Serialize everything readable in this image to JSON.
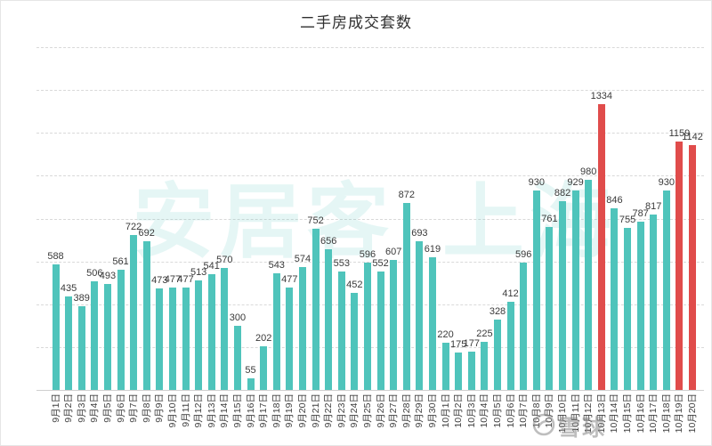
{
  "title": "二手房成交套数",
  "watermarks": {
    "center_left": "安居客",
    "center_right": "上海",
    "corner_brand": "雪球"
  },
  "colors": {
    "bar_teal": "#4FC4BB",
    "bar_red": "#E04C4B",
    "grid": "#D9D9D9",
    "axis": "#CFCFCF",
    "value_label": "#3A3A3A",
    "watermark_teal": "#4FC4BB",
    "watermark_gray": "#8A8A8A"
  },
  "chart_data": {
    "type": "bar",
    "title": "二手房成交套数",
    "categories": [
      "9月1日",
      "9月2日",
      "9月3日",
      "9月4日",
      "9月5日",
      "9月6日",
      "9月7日",
      "9月8日",
      "9月9日",
      "9月10日",
      "9月11日",
      "9月12日",
      "9月13日",
      "9月14日",
      "9月15日",
      "9月16日",
      "9月17日",
      "9月18日",
      "9月19日",
      "9月20日",
      "9月21日",
      "9月22日",
      "9月23日",
      "9月24日",
      "9月25日",
      "9月26日",
      "9月27日",
      "9月28日",
      "9月29日",
      "9月30日",
      "10月1日",
      "10月2日",
      "10月3日",
      "10月4日",
      "10月5日",
      "10月6日",
      "10月7日",
      "10月8日",
      "10月9日",
      "10月10日",
      "10月11日",
      "10月12日",
      "10月13日",
      "10月14日",
      "10月15日",
      "10月16日",
      "10月17日",
      "10月18日",
      "10月19日",
      "10月20日"
    ],
    "values": [
      588,
      435,
      389,
      506,
      493,
      561,
      722,
      692,
      473,
      477,
      477,
      513,
      541,
      570,
      300,
      55,
      202,
      543,
      477,
      574,
      752,
      656,
      553,
      452,
      596,
      552,
      607,
      872,
      693,
      619,
      220,
      175,
      177,
      225,
      328,
      412,
      596,
      930,
      761,
      882,
      929,
      980,
      1334,
      846,
      755,
      787,
      817,
      930,
      1159,
      1142
    ],
    "highlighted_indices": [
      42,
      48,
      49
    ],
    "xlabel": "",
    "ylabel": "",
    "ylim": [
      0,
      1600
    ],
    "gridline_step": 200,
    "grid": "horizontal dashed, no y-axis tick labels",
    "legend": "none",
    "value_labels": "shown above each bar"
  }
}
